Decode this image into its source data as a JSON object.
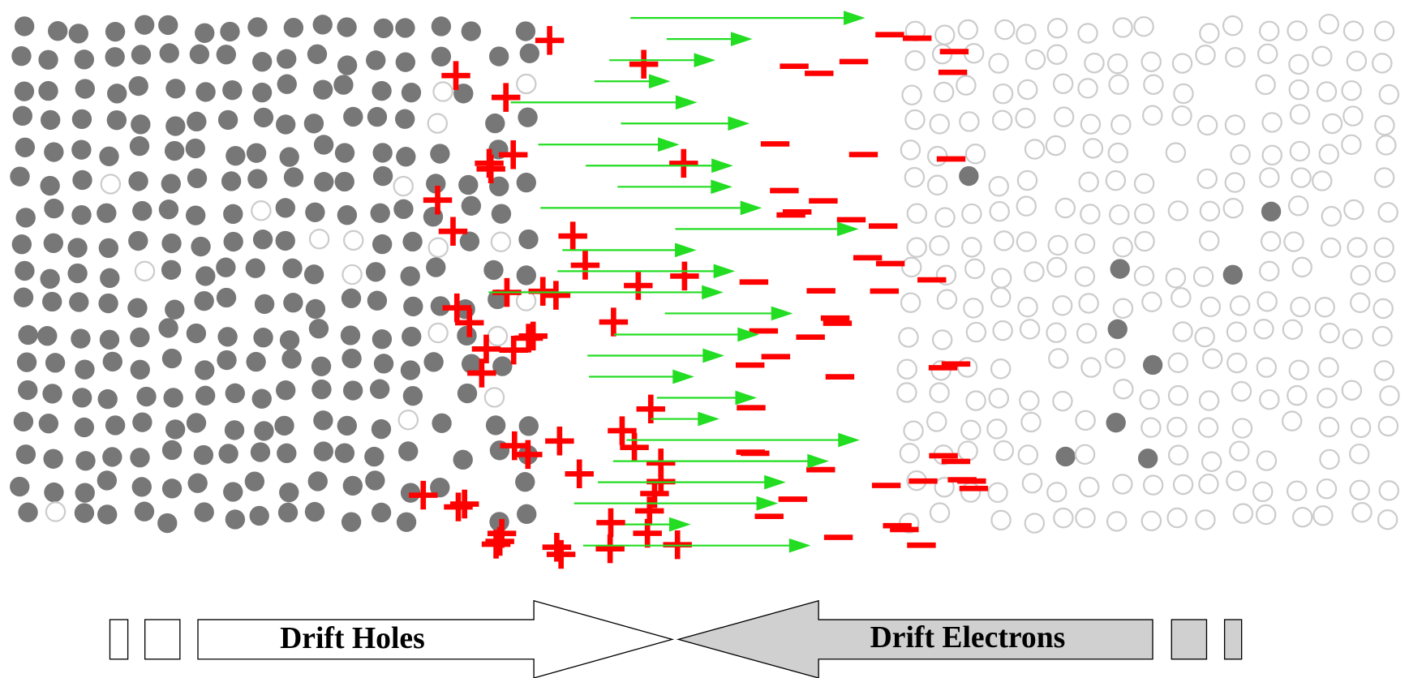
{
  "arrows": {
    "left": {
      "label": "Drift Holes"
    },
    "right": {
      "label": "Drift Electrons"
    }
  }
}
